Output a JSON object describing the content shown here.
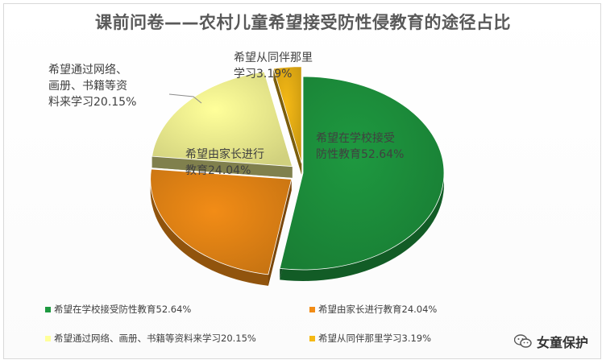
{
  "chart_data": {
    "type": "pie",
    "title": "课前问卷——农村儿童希望接受防性侵教育的途径占比",
    "slices": [
      {
        "label": "希望在学校接受防性教育",
        "value": 52.64,
        "color": "#1e9940"
      },
      {
        "label": "希望由家长进行教育",
        "value": 24.04,
        "color": "#f28c16"
      },
      {
        "label": "希望通过网络、画册、书籍等资料来学习",
        "value": 20.15,
        "color": "#ffff9a"
      },
      {
        "label": "希望从同伴那里学习",
        "value": 3.19,
        "color": "#f5b915"
      }
    ],
    "data_labels": [
      "希望在学校接受\n防性教育52.64%",
      "希望由家长进行\n教育24.04%",
      "希望通过网络、\n画册、书籍等资\n料来学习20.15%",
      "希望从同伴那里\n学习3.19%"
    ],
    "legend": [
      "希望在学校接受防性教育52.64%",
      "希望由家长进行教育24.04%",
      "希望通过网络、画册、书籍等资料来学习20.15%",
      "希望从同伴那里学习3.19%"
    ],
    "legend_position": "bottom"
  },
  "watermark": {
    "text": "女童保护",
    "icon": "wechat-icon"
  }
}
